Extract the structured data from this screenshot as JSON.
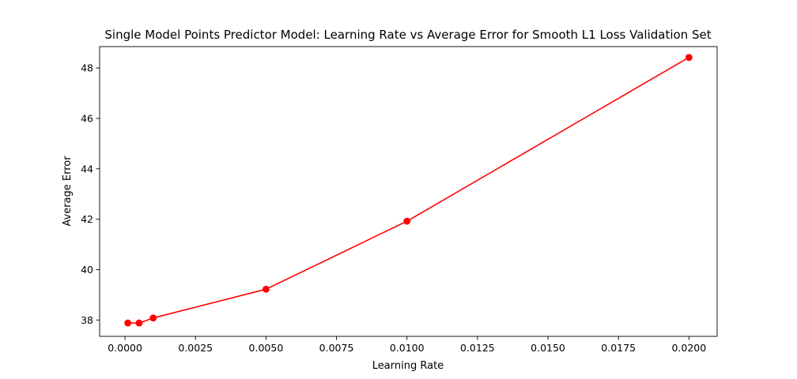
{
  "chart_data": {
    "type": "line",
    "title": "Single Model Points Predictor Model: Learning Rate vs Average Error for Smooth L1 Loss Validation Set",
    "xlabel": "Learning Rate",
    "ylabel": "Average Error",
    "xlim": [
      -0.0009,
      0.021
    ],
    "ylim": [
      37.35,
      48.85
    ],
    "xticks": [
      0.0,
      0.0025,
      0.005,
      0.0075,
      0.01,
      0.0125,
      0.015,
      0.0175,
      0.02
    ],
    "xtick_labels": [
      "0.0000",
      "0.0025",
      "0.0050",
      "0.0075",
      "0.0100",
      "0.0125",
      "0.0150",
      "0.0175",
      "0.0200"
    ],
    "yticks": [
      38,
      40,
      42,
      44,
      46,
      48
    ],
    "ytick_labels": [
      "38",
      "40",
      "42",
      "44",
      "46",
      "48"
    ],
    "grid": false,
    "series": [
      {
        "color": "#ff0000",
        "marker": "circle",
        "x": [
          0.0001,
          0.0005,
          0.001,
          0.005,
          0.01,
          0.02
        ],
        "y": [
          37.88,
          37.88,
          38.08,
          39.22,
          41.92,
          48.42
        ]
      }
    ]
  }
}
